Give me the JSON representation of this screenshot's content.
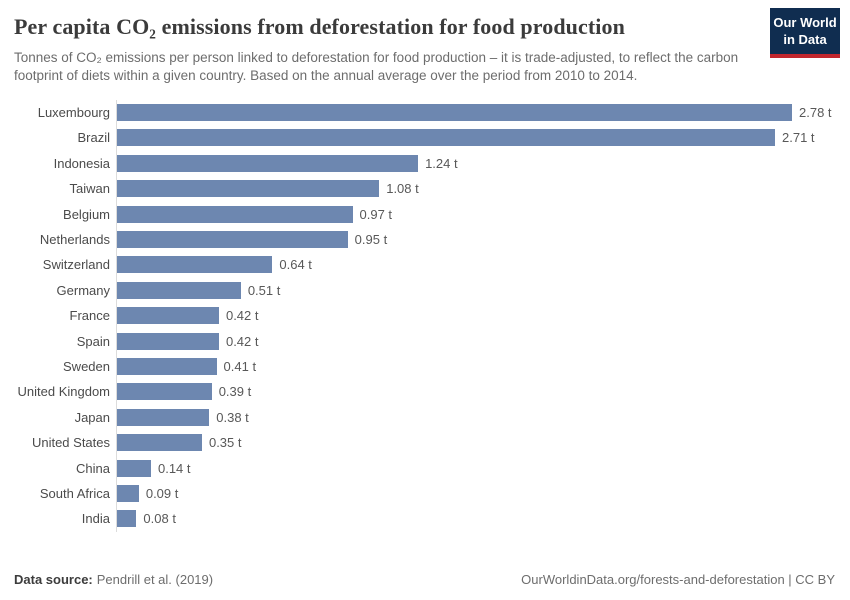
{
  "header": {
    "title": "Per capita CO₂ emissions from deforestation for food production",
    "subtitle": "Tonnes of CO₂ emissions per person linked to deforestation for food production – it is trade-adjusted, to reflect the carbon footprint of diets within a given country. Based on the annual average over the period from 2010 to 2014.",
    "logo": {
      "line1": "Our World",
      "line2": "in Data",
      "bg_color": "#102d50",
      "accent_color": "#c2262d"
    }
  },
  "chart_data": {
    "type": "bar",
    "orientation": "horizontal",
    "title": "Per capita CO₂ emissions from deforestation for food production",
    "categories": [
      "Luxembourg",
      "Brazil",
      "Indonesia",
      "Taiwan",
      "Belgium",
      "Netherlands",
      "Switzerland",
      "Germany",
      "France",
      "Spain",
      "Sweden",
      "United Kingdom",
      "Japan",
      "United States",
      "China",
      "South Africa",
      "India"
    ],
    "values": [
      2.78,
      2.71,
      1.24,
      1.08,
      0.97,
      0.95,
      0.64,
      0.51,
      0.42,
      0.42,
      0.41,
      0.39,
      0.38,
      0.35,
      0.14,
      0.09,
      0.08
    ],
    "value_labels": [
      "2.78 t",
      "2.71 t",
      "1.24 t",
      "1.08 t",
      "0.97 t",
      "0.95 t",
      "0.64 t",
      "0.51 t",
      "0.42 t",
      "0.42 t",
      "0.41 t",
      "0.39 t",
      "0.38 t",
      "0.35 t",
      "0.14 t",
      "0.09 t",
      "0.08 t"
    ],
    "xlabel": "",
    "ylabel": "",
    "xlim": [
      0,
      2.78
    ],
    "unit": "t",
    "grid": false,
    "legend": "none",
    "bar_color": "#6d87b0",
    "axis_line_color": "#dcdcdc"
  },
  "footer": {
    "source_label": "Data source:",
    "source_value": "Pendrill et al. (2019)",
    "right_text": "OurWorldinData.org/forests-and-deforestation | CC BY"
  }
}
